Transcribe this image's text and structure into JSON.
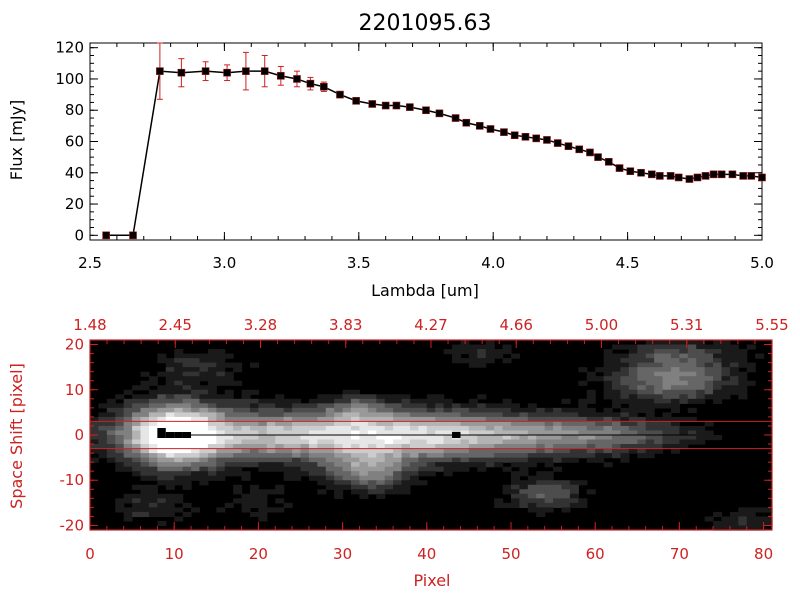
{
  "chart_data": [
    {
      "type": "scatter",
      "title": "2201095.63",
      "xlabel": "Lambda [um]",
      "ylabel": "Flux [mJy]",
      "xlim": [
        2.5,
        5.0
      ],
      "ylim": [
        -3,
        123
      ],
      "x_ticks": [
        "2.5",
        "3.0",
        "3.5",
        "4.0",
        "4.5",
        "5.0"
      ],
      "y_ticks": [
        "0",
        "20",
        "40",
        "60",
        "80",
        "100",
        "120"
      ],
      "colors": {
        "line": "#000000",
        "marker": "#000000",
        "error": "#cc2222"
      },
      "series": [
        {
          "x": [
            2.56,
            2.66,
            2.76,
            2.84,
            2.93,
            3.01,
            3.08,
            3.15,
            3.21,
            3.27,
            3.32,
            3.37,
            3.43,
            3.49,
            3.55,
            3.6,
            3.64,
            3.69,
            3.75,
            3.8,
            3.86,
            3.9,
            3.95,
            3.99,
            4.04,
            4.08,
            4.12,
            4.16,
            4.2,
            4.24,
            4.28,
            4.32,
            4.36,
            4.39,
            4.43,
            4.47,
            4.51,
            4.55,
            4.59,
            4.62,
            4.66,
            4.69,
            4.73,
            4.76,
            4.79,
            4.82,
            4.85,
            4.89,
            4.93,
            4.96,
            5.0
          ],
          "y": [
            0,
            0,
            105,
            104,
            105,
            104,
            105,
            105,
            102,
            100,
            97,
            95,
            90,
            86,
            84,
            83,
            83,
            82,
            80,
            78,
            75,
            72,
            70,
            68,
            66,
            64,
            63,
            62,
            61,
            59,
            57,
            55,
            53,
            50,
            47,
            43,
            41,
            40,
            39,
            38,
            38,
            37,
            36,
            37,
            38,
            39,
            39,
            39,
            38,
            38,
            37
          ],
          "yerr": [
            0,
            0,
            18,
            9,
            6,
            5,
            12,
            10,
            6,
            5,
            4,
            3,
            1,
            1,
            1,
            1,
            1,
            1,
            1,
            1,
            1,
            1,
            1,
            1,
            1,
            1,
            1,
            1,
            1,
            1,
            1,
            1,
            1,
            1,
            1,
            1,
            1,
            1,
            1,
            1,
            1,
            1,
            1,
            1,
            1,
            1,
            1,
            1,
            1,
            1,
            1
          ]
        }
      ]
    },
    {
      "type": "heatmap",
      "xlabel": "Pixel",
      "ylabel": "Space Shift [pixel]",
      "xlim": [
        0,
        81
      ],
      "ylim": [
        -21,
        21
      ],
      "x_ticks": [
        "0",
        "10",
        "20",
        "30",
        "40",
        "50",
        "60",
        "70",
        "80"
      ],
      "y_ticks": [
        "-20",
        "-10",
        "0",
        "10",
        "20"
      ],
      "top_axis_labels": [
        "1.48",
        "2.45",
        "3.28",
        "3.83",
        "4.27",
        "4.66",
        "5.00",
        "5.31",
        "5.55"
      ],
      "extraction_window": [
        -3,
        3
      ],
      "trace_y": 0,
      "trace_marks_x": [
        8.5,
        9.5,
        10.5,
        11.5,
        43.5
      ],
      "colors": {
        "axes": "#cc2222",
        "window_lines": "#cc2222",
        "trace": "#000000"
      },
      "blobs": [
        {
          "x": 10,
          "y": 0,
          "sx": 4,
          "sy": 5,
          "amp": 1.0
        },
        {
          "x": 26,
          "y": 0,
          "sx": 14,
          "sy": 4,
          "amp": 0.75
        },
        {
          "x": 45,
          "y": 0,
          "sx": 12,
          "sy": 3.5,
          "amp": 0.55
        },
        {
          "x": 62,
          "y": 0,
          "sx": 7,
          "sy": 2.5,
          "amp": 0.3
        },
        {
          "x": 33,
          "y": -8,
          "sx": 3.5,
          "sy": 3,
          "amp": 0.55
        },
        {
          "x": 32,
          "y": 6,
          "sx": 2.5,
          "sy": 2,
          "amp": 0.3
        },
        {
          "x": 54,
          "y": -13,
          "sx": 3,
          "sy": 2.5,
          "amp": 0.4
        },
        {
          "x": 69,
          "y": 12,
          "sx": 5,
          "sy": 3,
          "amp": 0.55
        },
        {
          "x": 70,
          "y": 18,
          "sx": 5,
          "sy": 2.5,
          "amp": 0.3
        },
        {
          "x": 13,
          "y": 15,
          "sx": 4,
          "sy": 3,
          "amp": 0.2
        },
        {
          "x": 47,
          "y": 18,
          "sx": 3,
          "sy": 2,
          "amp": 0.2
        },
        {
          "x": 7,
          "y": -16,
          "sx": 3,
          "sy": 2.5,
          "amp": 0.2
        },
        {
          "x": 20,
          "y": -15,
          "sx": 3,
          "sy": 2.5,
          "amp": 0.15
        },
        {
          "x": 78,
          "y": -19,
          "sx": 3,
          "sy": 2,
          "amp": 0.2
        }
      ]
    }
  ]
}
